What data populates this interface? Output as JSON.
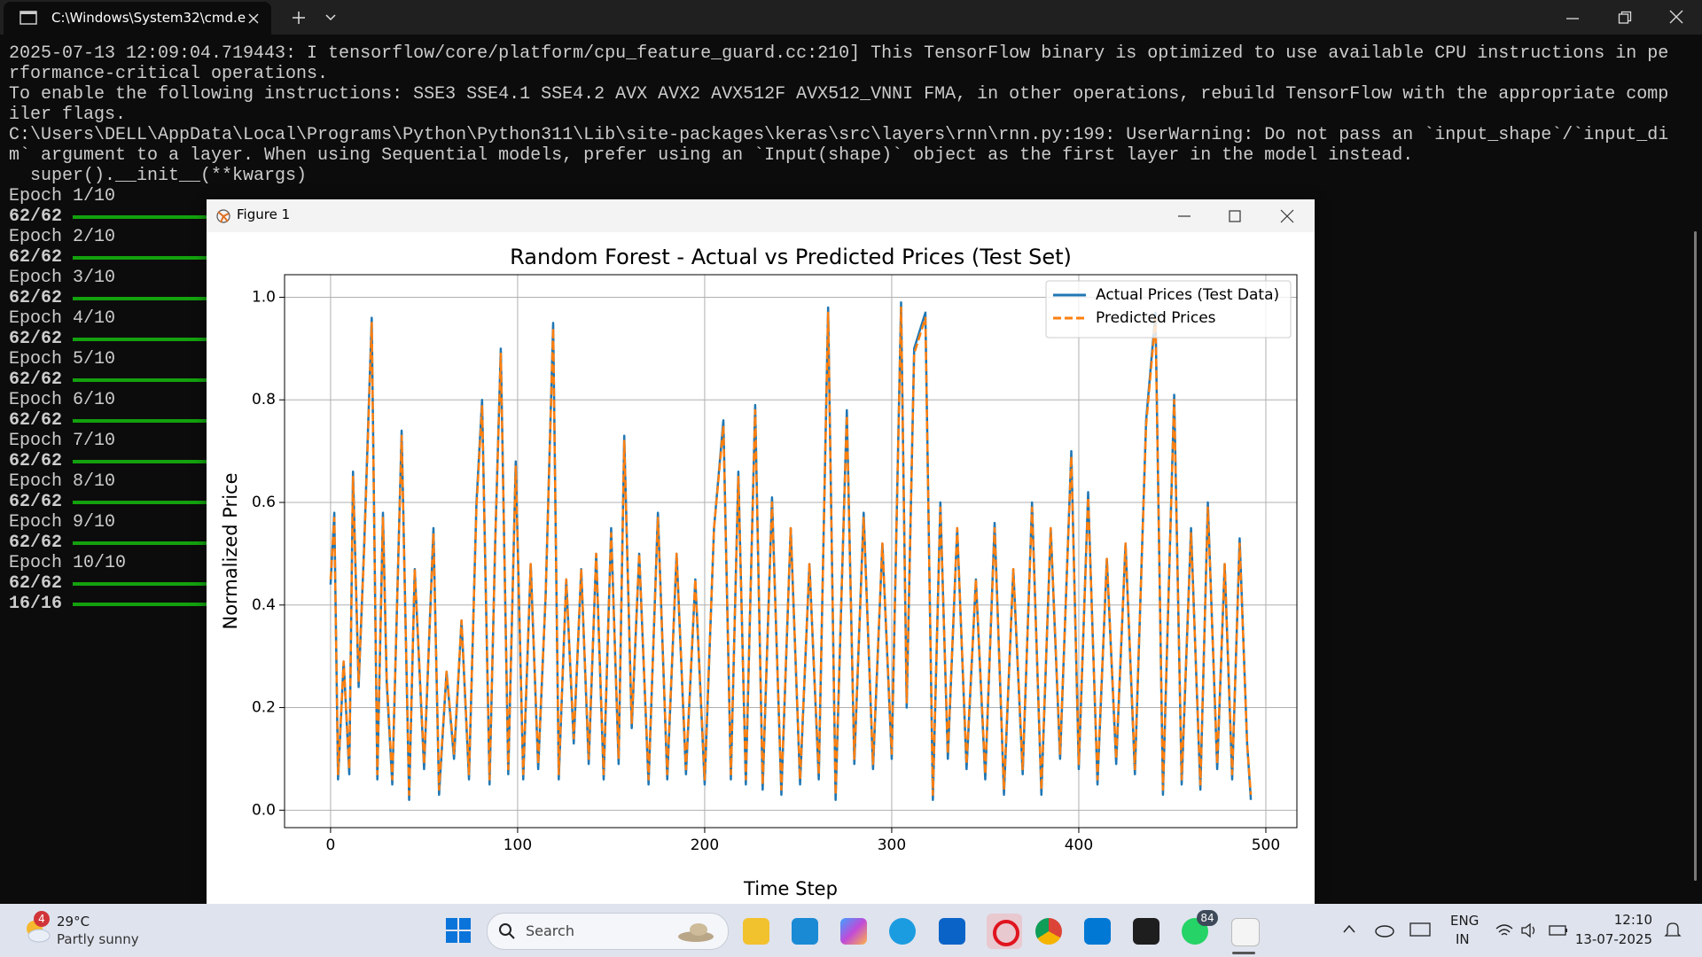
{
  "tab": {
    "title": "C:\\Windows\\System32\\cmd.e"
  },
  "terminal": {
    "log": [
      "2025-07-13 12:09:04.719443: I tensorflow/core/platform/cpu_feature_guard.cc:210] This TensorFlow binary is optimized to use available CPU instructions in pe",
      "rformance-critical operations.",
      "To enable the following instructions: SSE3 SSE4.1 SSE4.2 AVX AVX2 AVX512F AVX512_VNNI FMA, in other operations, rebuild TensorFlow with the appropriate comp",
      "iler flags.",
      "C:\\Users\\DELL\\AppData\\Local\\Programs\\Python\\Python311\\Lib\\site-packages\\keras\\src\\layers\\rnn\\rnn.py:199: UserWarning: Do not pass an `input_shape`/`input_di",
      "m` argument to a layer. When using Sequential models, prefer using an `Input(shape)` object as the first layer in the model instead.",
      "  super().__init__(**kwargs)"
    ],
    "epochs": [
      {
        "label": "Epoch 1/10",
        "steps": "62/62"
      },
      {
        "label": "Epoch 2/10",
        "steps": "62/62"
      },
      {
        "label": "Epoch 3/10",
        "steps": "62/62"
      },
      {
        "label": "Epoch 4/10",
        "steps": "62/62"
      },
      {
        "label": "Epoch 5/10",
        "steps": "62/62"
      },
      {
        "label": "Epoch 6/10",
        "steps": "62/62"
      },
      {
        "label": "Epoch 7/10",
        "steps": "62/62"
      },
      {
        "label": "Epoch 8/10",
        "steps": "62/62"
      },
      {
        "label": "Epoch 9/10",
        "steps": "62/62"
      },
      {
        "label": "Epoch 10/10",
        "steps": "62/62"
      }
    ],
    "last_steps": "16/16"
  },
  "figure_window": {
    "title": "Figure 1"
  },
  "chart_data": {
    "type": "line",
    "title": "Random Forest - Actual vs Predicted Prices (Test Set)",
    "x_label": "Time Step",
    "y_label": "Normalized Price",
    "x": [
      0,
      2,
      4,
      7,
      10,
      12,
      15,
      18,
      22,
      25,
      28,
      30,
      33,
      38,
      42,
      45,
      50,
      55,
      58,
      62,
      66,
      70,
      74,
      78,
      81,
      85,
      88,
      91,
      95,
      99,
      103,
      107,
      111,
      115,
      119,
      122,
      126,
      130,
      134,
      138,
      142,
      146,
      150,
      154,
      157,
      161,
      165,
      170,
      175,
      180,
      185,
      190,
      195,
      200,
      205,
      210,
      214,
      218,
      222,
      227,
      231,
      236,
      241,
      246,
      251,
      256,
      261,
      266,
      270,
      276,
      280,
      285,
      290,
      295,
      300,
      305,
      308,
      312,
      318,
      322,
      326,
      330,
      335,
      340,
      345,
      350,
      355,
      360,
      365,
      370,
      375,
      380,
      385,
      390,
      396,
      400,
      405,
      410,
      415,
      420,
      425,
      430,
      436,
      441,
      445,
      451,
      455,
      460,
      465,
      469,
      474,
      478,
      482,
      486,
      490,
      492
    ],
    "series": [
      {
        "name": "Actual Prices (Test Data)",
        "color": "#1f77b4",
        "linestyle": "solid",
        "values": [
          0.44,
          0.58,
          0.06,
          0.29,
          0.07,
          0.66,
          0.24,
          0.52,
          0.96,
          0.06,
          0.58,
          0.25,
          0.05,
          0.74,
          0.02,
          0.47,
          0.08,
          0.55,
          0.03,
          0.27,
          0.1,
          0.37,
          0.06,
          0.6,
          0.8,
          0.05,
          0.52,
          0.9,
          0.07,
          0.68,
          0.06,
          0.48,
          0.08,
          0.42,
          0.95,
          0.06,
          0.45,
          0.13,
          0.47,
          0.09,
          0.5,
          0.06,
          0.55,
          0.09,
          0.73,
          0.16,
          0.5,
          0.05,
          0.58,
          0.06,
          0.5,
          0.07,
          0.45,
          0.05,
          0.55,
          0.76,
          0.06,
          0.66,
          0.05,
          0.79,
          0.04,
          0.61,
          0.03,
          0.55,
          0.05,
          0.48,
          0.06,
          0.98,
          0.02,
          0.78,
          0.09,
          0.58,
          0.08,
          0.52,
          0.1,
          0.99,
          0.2,
          0.9,
          0.97,
          0.02,
          0.6,
          0.1,
          0.55,
          0.08,
          0.45,
          0.06,
          0.56,
          0.03,
          0.47,
          0.07,
          0.6,
          0.03,
          0.55,
          0.1,
          0.7,
          0.08,
          0.62,
          0.05,
          0.49,
          0.09,
          0.52,
          0.07,
          0.76,
          0.97,
          0.03,
          0.81,
          0.05,
          0.55,
          0.04,
          0.6,
          0.08,
          0.48,
          0.06,
          0.53,
          0.13,
          0.02
        ]
      },
      {
        "name": "Predicted Prices",
        "color": "#ff7f0e",
        "linestyle": "dashed",
        "values": [
          0.45,
          0.57,
          0.07,
          0.29,
          0.08,
          0.65,
          0.25,
          0.51,
          0.95,
          0.07,
          0.57,
          0.26,
          0.06,
          0.73,
          0.03,
          0.47,
          0.09,
          0.54,
          0.04,
          0.27,
          0.11,
          0.37,
          0.07,
          0.59,
          0.79,
          0.06,
          0.52,
          0.89,
          0.08,
          0.67,
          0.07,
          0.48,
          0.09,
          0.42,
          0.94,
          0.07,
          0.45,
          0.14,
          0.47,
          0.1,
          0.5,
          0.07,
          0.54,
          0.1,
          0.72,
          0.17,
          0.5,
          0.06,
          0.57,
          0.07,
          0.5,
          0.08,
          0.45,
          0.06,
          0.55,
          0.75,
          0.07,
          0.65,
          0.06,
          0.78,
          0.05,
          0.6,
          0.04,
          0.55,
          0.06,
          0.48,
          0.07,
          0.97,
          0.03,
          0.77,
          0.1,
          0.57,
          0.09,
          0.52,
          0.11,
          0.98,
          0.21,
          0.89,
          0.96,
          0.03,
          0.59,
          0.11,
          0.55,
          0.09,
          0.45,
          0.07,
          0.55,
          0.04,
          0.47,
          0.08,
          0.59,
          0.04,
          0.55,
          0.11,
          0.69,
          0.09,
          0.61,
          0.06,
          0.49,
          0.1,
          0.52,
          0.08,
          0.75,
          0.96,
          0.04,
          0.8,
          0.06,
          0.54,
          0.05,
          0.59,
          0.09,
          0.48,
          0.07,
          0.52,
          0.13,
          0.03
        ]
      }
    ],
    "xlim": [
      -24.6,
      516.6
    ],
    "ylim": [
      -0.034,
      1.044
    ],
    "xticks": [
      0,
      100,
      200,
      300,
      400,
      500
    ],
    "yticks": [
      {
        "value": 0,
        "label": "0.0"
      },
      0.2,
      0.4,
      0.6,
      0.8,
      {
        "value": 1,
        "label": "1.0"
      }
    ],
    "grid": true,
    "legend": "upper right"
  },
  "taskbar": {
    "weather": {
      "badge": "4",
      "temperature": "29°C",
      "condition": "Partly sunny"
    },
    "search": "Search",
    "whatsapp_badge": "84",
    "language": [
      "ENG",
      "IN"
    ],
    "time": "12:10",
    "date": "13-07-2025"
  }
}
